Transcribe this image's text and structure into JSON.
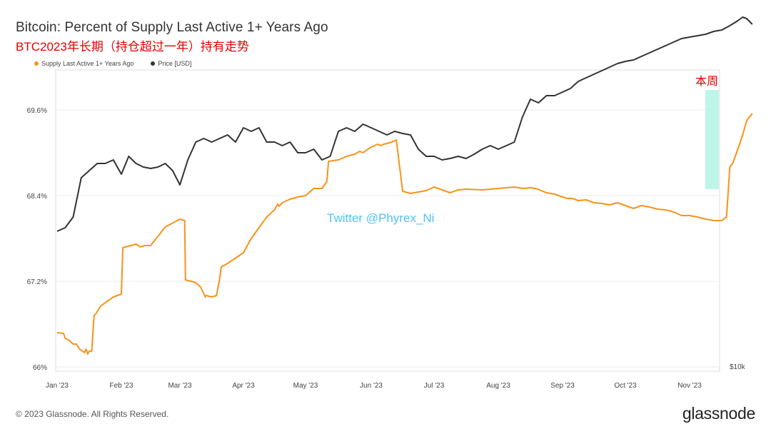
{
  "header": {
    "title": "Bitcoin: Percent of Supply Last Active 1+ Years Ago",
    "subtitle": "BTC2023年长期（持仓超过一年）持有走势"
  },
  "footer": {
    "copyright": "© 2023 Glassnode. All Rights Reserved.",
    "brand": "glassnode"
  },
  "colors": {
    "supply": "#f7931a",
    "price": "#333333",
    "highlight": "#b2f5e4"
  },
  "chart_data": {
    "type": "line",
    "title": "Bitcoin: Percent of Supply Last Active 1+ Years Ago",
    "legend": [
      "Supply Last Active 1+ Years Ago",
      "Price [USD]"
    ],
    "legend_position": "top-left",
    "x_ticks": [
      "Jan '23",
      "Feb '23",
      "Mar '23",
      "Apr '23",
      "May '23",
      "Jun '23",
      "Jul '23",
      "Aug '23",
      "Sep '23",
      "Oct '23",
      "Nov '23"
    ],
    "y_left": {
      "ticks": [
        "66%",
        "67.2%",
        "68.4%",
        "69.6%"
      ],
      "range": [
        66,
        70.6
      ]
    },
    "y_right": {
      "ticks": [
        "$10k"
      ]
    },
    "annotations": {
      "this_week": "本周",
      "watermark": "Twitter @Phyrex_Ni"
    },
    "series": [
      {
        "name": "Supply Last Active 1+ Years Ago",
        "x": [
          0,
          0.4,
          0.5,
          0.7,
          1.0,
          1.2,
          1.4,
          1.7,
          1.8,
          1.9,
          2.0,
          2.15,
          2.3,
          2.4,
          2.7,
          3.0,
          3.5,
          4.0,
          4.1,
          5.0,
          5.3,
          5.6,
          6.0,
          7.0,
          8.0,
          8.3,
          8.35,
          9.0,
          9.3,
          9.6,
          9.65,
          10.0,
          10.3,
          10.5,
          10.6,
          11.0,
          12.0,
          12.5,
          13.0,
          13.5,
          14.0,
          14.2,
          14.3,
          14.5,
          15.0,
          15.5,
          16.0,
          16.5,
          17.0,
          17.3,
          17.4,
          18.0,
          18.5,
          19.0,
          19.3,
          19.5,
          19.8,
          20.0,
          20.2,
          20.4,
          20.6,
          20.8,
          21.0,
          21.3,
          21.6,
          22.0,
          22.5,
          23.0,
          23.5,
          24.0,
          24.5,
          25.0,
          25.5,
          26.0,
          27.0,
          28.0,
          28.5,
          29.0,
          29.5,
          30.0,
          30.3,
          30.45,
          31.0,
          31.5,
          32.0,
          32.3,
          32.6,
          33.0,
          33.5,
          34.0,
          34.5,
          35.0,
          35.5,
          36.0,
          36.5,
          37.0,
          37.5,
          38.0,
          38.5,
          39.0,
          39.5,
          40.0,
          40.5,
          41.0,
          41.5,
          42.0,
          42.3,
          42.5,
          42.7,
          43.0,
          43.3,
          43.55,
          43.9
        ],
        "y": [
          66.48,
          66.47,
          66.4,
          66.38,
          66.32,
          66.32,
          66.25,
          66.2,
          66.25,
          66.18,
          66.22,
          66.22,
          66.72,
          66.74,
          66.85,
          66.9,
          66.98,
          67.02,
          67.67,
          67.72,
          67.68,
          67.7,
          67.7,
          67.96,
          68.07,
          68.05,
          67.22,
          67.18,
          67.12,
          66.98,
          67.0,
          66.98,
          67.0,
          67.23,
          67.4,
          67.45,
          67.6,
          67.8,
          67.95,
          68.1,
          68.2,
          68.28,
          68.25,
          68.3,
          68.35,
          68.38,
          68.4,
          68.5,
          68.5,
          68.6,
          68.88,
          68.9,
          68.95,
          68.98,
          69.02,
          69.0,
          69.05,
          69.08,
          69.1,
          69.12,
          69.1,
          69.12,
          69.13,
          69.15,
          69.18,
          68.46,
          68.43,
          68.45,
          68.47,
          68.52,
          68.48,
          68.44,
          68.48,
          68.49,
          68.48,
          68.5,
          68.51,
          68.52,
          68.5,
          68.51,
          68.5,
          68.49,
          68.44,
          68.42,
          68.38,
          68.36,
          68.36,
          68.33,
          68.34,
          68.3,
          68.29,
          68.27,
          68.3,
          68.26,
          68.22,
          68.26,
          68.24,
          68.21,
          68.2,
          68.17,
          68.12,
          68.12,
          68.1,
          68.07,
          68.05,
          68.05,
          68.1,
          68.8,
          68.86,
          69.05,
          69.25,
          69.45,
          69.55
        ]
      },
      {
        "name": "Price [USD]",
        "x": [
          0,
          0.5,
          1.0,
          1.5,
          2.0,
          2.5,
          3.0,
          3.5,
          4.0,
          4.5,
          5.0,
          5.5,
          6.0,
          6.5,
          7.0,
          7.5,
          8.0,
          8.5,
          9.0,
          9.5,
          10.0,
          10.5,
          11.0,
          11.5,
          12.0,
          12.5,
          13.0,
          13.5,
          14.0,
          14.5,
          15.0,
          15.5,
          16.0,
          16.5,
          17.0,
          17.5,
          18.0,
          18.5,
          19.0,
          19.5,
          20.0,
          20.5,
          21.0,
          21.5,
          22.0,
          22.5,
          23.0,
          23.5,
          24.0,
          24.5,
          25.0,
          25.5,
          26.0,
          26.5,
          27.0,
          27.5,
          28.0,
          28.5,
          29.0,
          29.5,
          30.0,
          30.5,
          31.0,
          31.5,
          32.0,
          32.5,
          33.0,
          33.5,
          34.0,
          34.5,
          35.0,
          35.5,
          36.0,
          36.5,
          37.0,
          37.5,
          38.0,
          38.5,
          39.0,
          39.5,
          40.0,
          40.5,
          41.0,
          41.5,
          42.0,
          42.5,
          43.0,
          43.3,
          43.55,
          43.9
        ],
        "y": [
          67.9,
          67.95,
          68.1,
          68.65,
          68.75,
          68.85,
          68.85,
          68.9,
          68.7,
          68.95,
          68.85,
          68.8,
          68.78,
          68.8,
          68.85,
          68.75,
          68.55,
          68.9,
          69.15,
          69.2,
          69.15,
          69.2,
          69.25,
          69.15,
          69.35,
          69.3,
          69.35,
          69.15,
          69.15,
          69.1,
          69.15,
          69.0,
          69.0,
          69.05,
          68.9,
          68.95,
          69.3,
          69.35,
          69.3,
          69.4,
          69.35,
          69.3,
          69.25,
          69.3,
          69.27,
          69.25,
          69.05,
          68.95,
          68.95,
          68.9,
          68.92,
          68.95,
          68.92,
          68.98,
          69.05,
          69.1,
          69.05,
          69.1,
          69.15,
          69.5,
          69.75,
          69.7,
          69.8,
          69.8,
          69.85,
          69.9,
          70.0,
          70.05,
          70.1,
          70.15,
          70.2,
          70.25,
          70.28,
          70.3,
          70.35,
          70.4,
          70.45,
          70.5,
          70.55,
          70.6,
          70.62,
          70.64,
          70.66,
          70.7,
          70.72,
          70.78,
          70.85,
          70.9,
          70.88,
          70.8
        ]
      }
    ]
  }
}
